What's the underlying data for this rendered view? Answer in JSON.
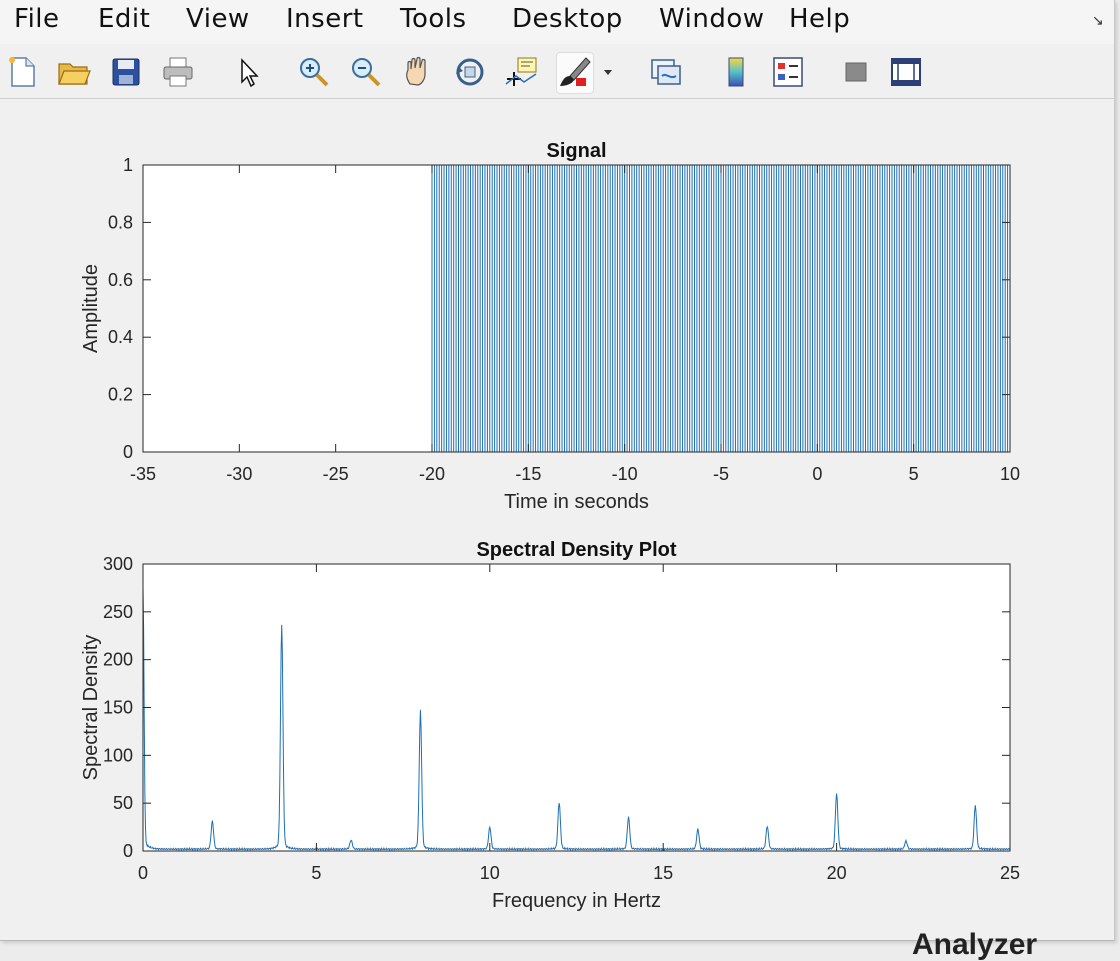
{
  "menu": [
    "File",
    "Edit",
    "View",
    "Insert",
    "Tools",
    "Desktop",
    "Window",
    "Help"
  ],
  "toolbar_icons": [
    "new-file-icon",
    "open-folder-icon",
    "save-icon",
    "print-icon",
    "pointer-icon",
    "zoom-in-icon",
    "zoom-out-icon",
    "pan-hand-icon",
    "rotate-3d-icon",
    "data-cursor-icon",
    "brush-icon",
    "dropdown-arrow-icon",
    "link-plot-icon",
    "colorbar-icon",
    "legend-icon",
    "hide-plot-tools-icon",
    "show-plot-tools-icon"
  ],
  "background_text": "Analyzer",
  "chart_data": [
    {
      "type": "line",
      "title": "Signal",
      "xlabel": "Time in seconds",
      "ylabel": "Amplitude",
      "xlim": [
        -35,
        10
      ],
      "ylim": [
        0,
        1
      ],
      "xticks": [
        -35,
        -30,
        -25,
        -20,
        -15,
        -10,
        -5,
        0,
        5,
        10
      ],
      "yticks": [
        0,
        0.2,
        0.4,
        0.6,
        0.8,
        1
      ],
      "xtick_labels": [
        "-35",
        "-30",
        "-25",
        "-20",
        "-15",
        "-10",
        "-5",
        "0",
        "5",
        "10"
      ],
      "ytick_labels": [
        "0",
        "0.2",
        "0.4",
        "0.6",
        "0.8",
        "1"
      ],
      "series": [
        {
          "description_values": "square pulse train, 0 from -35 to -20, alternating 0/1 with period 0.25 s from -20 to 10",
          "zero_until": -20,
          "pulse_period": 0.25,
          "pulse_duty": 0.5,
          "x_end": 10,
          "color": "#1f6fb4"
        }
      ],
      "grid": false
    },
    {
      "type": "line",
      "title": "Spectral Density Plot",
      "xlabel": "Frequency in Hertz",
      "ylabel": "Spectral Density",
      "xlim": [
        0,
        25
      ],
      "ylim": [
        0,
        300
      ],
      "xticks": [
        0,
        5,
        10,
        15,
        20,
        25
      ],
      "yticks": [
        0,
        50,
        100,
        150,
        200,
        250,
        300
      ],
      "xtick_labels": [
        "0",
        "5",
        "10",
        "15",
        "20",
        "25"
      ],
      "ytick_labels": [
        "0",
        "50",
        "100",
        "150",
        "200",
        "250",
        "300"
      ],
      "baseline": 2,
      "peaks": [
        {
          "x": 0,
          "y": 265
        },
        {
          "x": 2,
          "y": 30
        },
        {
          "x": 4,
          "y": 228
        },
        {
          "x": 6,
          "y": 11
        },
        {
          "x": 8,
          "y": 141
        },
        {
          "x": 10,
          "y": 24
        },
        {
          "x": 12,
          "y": 49
        },
        {
          "x": 14,
          "y": 34
        },
        {
          "x": 16,
          "y": 22
        },
        {
          "x": 18,
          "y": 25
        },
        {
          "x": 20,
          "y": 58
        },
        {
          "x": 22,
          "y": 10
        },
        {
          "x": 24,
          "y": 46
        }
      ],
      "color": "#1f6fb4",
      "grid": false
    }
  ]
}
